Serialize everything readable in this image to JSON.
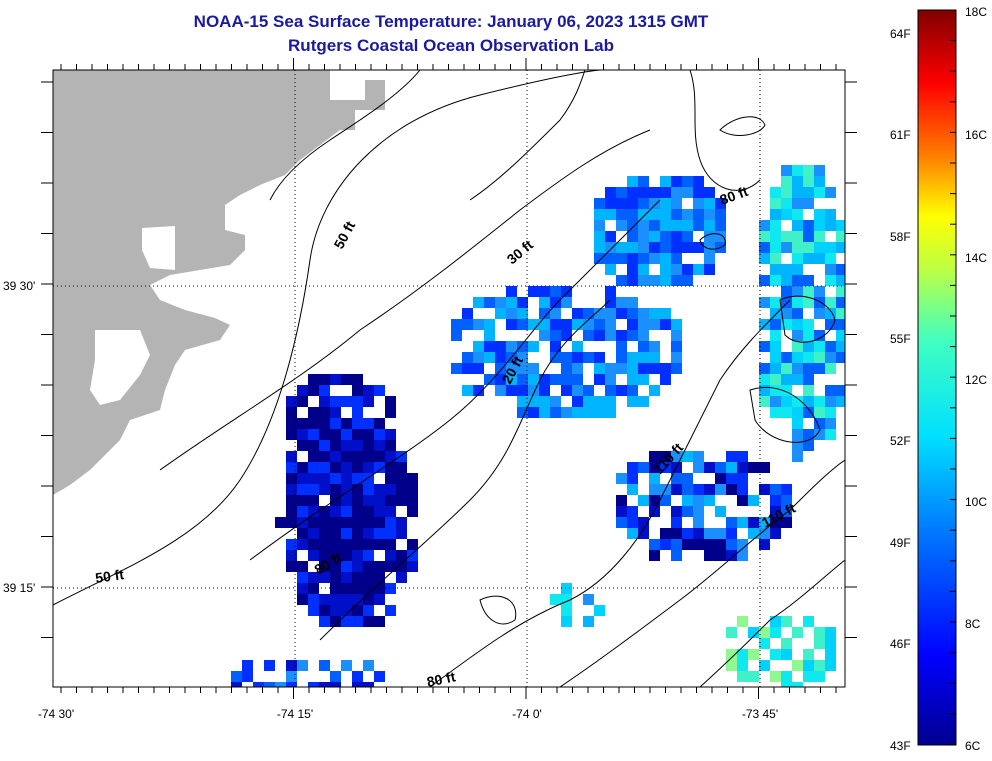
{
  "title": {
    "line1": "NOAA-15 Sea Surface Temperature:  January 06, 2023 1315 GMT",
    "line2": "Rutgers Coastal Ocean Observation Lab"
  },
  "axes": {
    "lon_labels": [
      "-74 30'",
      "-74 15'",
      "-74 0'",
      "-73 45'"
    ],
    "lat_labels": [
      "39 30'",
      "39 15'"
    ]
  },
  "contour_labels": [
    "50 ft",
    "30 ft",
    "80 ft",
    "20 ft",
    "110 ft",
    "80 ft",
    "50 ft",
    "80 ft",
    "110 ft"
  ],
  "colorbar": {
    "celsius_labels": [
      "18C",
      "16C",
      "14C",
      "12C",
      "10C",
      "8C",
      "6C"
    ],
    "fahrenheit_labels": [
      "64F",
      "61F",
      "58F",
      "55F",
      "52F",
      "49F",
      "46F",
      "43F"
    ]
  },
  "colors": {
    "title": "#1a1aa0",
    "land": "#b4b4b4"
  }
}
